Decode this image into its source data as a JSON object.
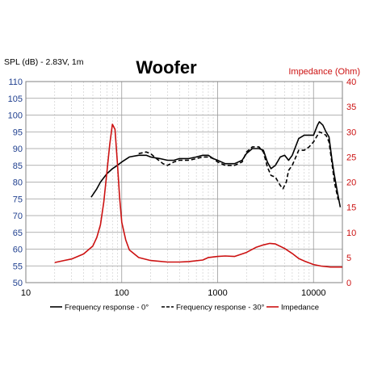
{
  "title": "Woofer",
  "left_axis_label": "SPL (dB) - 2.83V, 1m",
  "right_axis_label": "Impedance (Ohm)",
  "colors": {
    "spl": "#000000",
    "impedance": "#cc1111",
    "axis_left": "#1f3f8f",
    "axis_right": "#cc1111",
    "grid": "#b0b0b0"
  },
  "chart_data": {
    "type": "line",
    "title": "Woofer",
    "xscale": "log",
    "xlim": [
      10,
      20000
    ],
    "ylim": [
      50,
      110
    ],
    "y2lim": [
      0,
      40
    ],
    "grid": true,
    "legend_position": "bottom",
    "x_tick_labels": [
      "10",
      "100",
      "1000",
      "10000"
    ],
    "x_tick_values": [
      10,
      100,
      1000,
      10000
    ],
    "y_ticks": [
      "50",
      "55",
      "60",
      "65",
      "70",
      "75",
      "80",
      "85",
      "90",
      "95",
      "100",
      "105",
      "110"
    ],
    "y2_ticks": [
      "0",
      "5",
      "10",
      "15",
      "20",
      "25",
      "30",
      "35",
      "40"
    ],
    "series": [
      {
        "name": "Frequency response - 0°",
        "axis": "left",
        "style": "solid",
        "color": "#000000",
        "points": [
          [
            48,
            75.5
          ],
          [
            55,
            78
          ],
          [
            60,
            80
          ],
          [
            70,
            82.5
          ],
          [
            80,
            84
          ],
          [
            90,
            85
          ],
          [
            100,
            86
          ],
          [
            120,
            87.5
          ],
          [
            150,
            88
          ],
          [
            180,
            88
          ],
          [
            200,
            87.5
          ],
          [
            250,
            87
          ],
          [
            300,
            86.5
          ],
          [
            350,
            86.5
          ],
          [
            400,
            87
          ],
          [
            500,
            87
          ],
          [
            600,
            87.5
          ],
          [
            700,
            88
          ],
          [
            800,
            88
          ],
          [
            900,
            87
          ],
          [
            1000,
            86.5
          ],
          [
            1200,
            85.5
          ],
          [
            1500,
            85.5
          ],
          [
            1800,
            86.5
          ],
          [
            2000,
            88.5
          ],
          [
            2300,
            90
          ],
          [
            2700,
            90
          ],
          [
            3000,
            89.5
          ],
          [
            3300,
            86
          ],
          [
            3600,
            84
          ],
          [
            4000,
            85
          ],
          [
            4500,
            87.5
          ],
          [
            5000,
            88
          ],
          [
            5500,
            86.5
          ],
          [
            6000,
            88
          ],
          [
            7000,
            93
          ],
          [
            8000,
            94
          ],
          [
            9000,
            94
          ],
          [
            10000,
            94
          ],
          [
            11000,
            97
          ],
          [
            11500,
            98
          ],
          [
            12500,
            97
          ],
          [
            13500,
            95
          ],
          [
            14500,
            93.5
          ],
          [
            15500,
            87
          ],
          [
            16500,
            82
          ],
          [
            18000,
            76
          ],
          [
            19000,
            72.5
          ]
        ]
      },
      {
        "name": "Frequency response - 30°",
        "axis": "left",
        "style": "dashed",
        "color": "#000000",
        "points": [
          [
            150,
            88.5
          ],
          [
            180,
            89
          ],
          [
            200,
            88.5
          ],
          [
            230,
            87
          ],
          [
            270,
            85.5
          ],
          [
            300,
            85
          ],
          [
            350,
            86
          ],
          [
            400,
            86.5
          ],
          [
            500,
            86.5
          ],
          [
            600,
            87
          ],
          [
            700,
            87.5
          ],
          [
            800,
            87.5
          ],
          [
            900,
            87
          ],
          [
            1000,
            86
          ],
          [
            1200,
            85
          ],
          [
            1500,
            85
          ],
          [
            1800,
            86
          ],
          [
            2000,
            89
          ],
          [
            2300,
            90.5
          ],
          [
            2700,
            90.5
          ],
          [
            3000,
            89
          ],
          [
            3300,
            84.5
          ],
          [
            3600,
            82
          ],
          [
            4000,
            81.5
          ],
          [
            4500,
            79
          ],
          [
            4800,
            78
          ],
          [
            5200,
            80
          ],
          [
            5500,
            83.5
          ],
          [
            6000,
            85
          ],
          [
            7000,
            89.5
          ],
          [
            8000,
            89.5
          ],
          [
            9000,
            90.5
          ],
          [
            10000,
            92
          ],
          [
            11000,
            94
          ],
          [
            11500,
            95
          ],
          [
            12500,
            94.5
          ],
          [
            13500,
            94
          ],
          [
            14500,
            92
          ],
          [
            15500,
            86
          ],
          [
            16500,
            80
          ],
          [
            18000,
            75
          ],
          [
            19000,
            74
          ]
        ]
      },
      {
        "name": "Impedance",
        "axis": "right",
        "style": "solid",
        "color": "#cc1111",
        "points": [
          [
            20,
            4
          ],
          [
            25,
            4.4
          ],
          [
            30,
            4.7
          ],
          [
            40,
            5.7
          ],
          [
            50,
            7.3
          ],
          [
            55,
            9
          ],
          [
            60,
            11.5
          ],
          [
            65,
            16
          ],
          [
            70,
            22
          ],
          [
            75,
            27.5
          ],
          [
            80,
            31.5
          ],
          [
            85,
            30.5
          ],
          [
            90,
            24
          ],
          [
            95,
            17
          ],
          [
            100,
            12
          ],
          [
            110,
            8.5
          ],
          [
            120,
            6.5
          ],
          [
            150,
            5
          ],
          [
            200,
            4.4
          ],
          [
            300,
            4.1
          ],
          [
            400,
            4.1
          ],
          [
            500,
            4.2
          ],
          [
            700,
            4.5
          ],
          [
            800,
            5
          ],
          [
            1000,
            5.2
          ],
          [
            1200,
            5.3
          ],
          [
            1500,
            5.2
          ],
          [
            2000,
            6
          ],
          [
            2500,
            7
          ],
          [
            3000,
            7.5
          ],
          [
            3500,
            7.8
          ],
          [
            4000,
            7.7
          ],
          [
            5000,
            6.8
          ],
          [
            6000,
            5.8
          ],
          [
            7000,
            4.8
          ],
          [
            8000,
            4.3
          ],
          [
            10000,
            3.6
          ],
          [
            12000,
            3.3
          ],
          [
            15000,
            3.1
          ],
          [
            20000,
            3.1
          ]
        ]
      }
    ]
  }
}
